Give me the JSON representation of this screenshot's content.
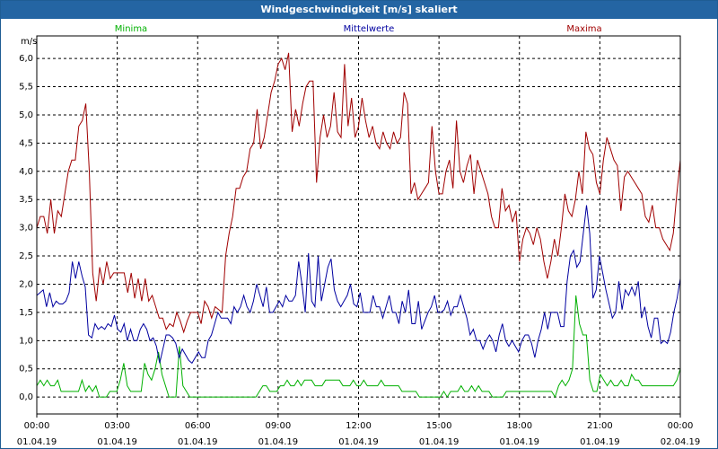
{
  "window": {
    "title": "Windgeschwindigkeit [m/s] skaliert"
  },
  "chart_data": {
    "type": "line",
    "ylabel": "m/s",
    "ylim": [
      -0.3,
      6.4
    ],
    "yticks": [
      "0,0",
      "0,5",
      "1,0",
      "1,5",
      "2,0",
      "2,5",
      "3,0",
      "3,5",
      "4,0",
      "4,5",
      "5,0",
      "5,5",
      "6,0"
    ],
    "xtick_times": [
      "00:00",
      "03:00",
      "06:00",
      "09:00",
      "12:00",
      "15:00",
      "18:00",
      "21:00",
      "00:00"
    ],
    "xtick_dates": [
      "01.04.19",
      "01.04.19",
      "01.04.19",
      "01.04.19",
      "01.04.19",
      "01.04.19",
      "01.04.19",
      "01.04.19",
      "02.04.19"
    ],
    "colors": {
      "Minima": "#00b000",
      "Mittelwerte": "#0000a0",
      "Maxima": "#a00000"
    },
    "series": [
      {
        "name": "Minima",
        "values": [
          0.2,
          0.3,
          0.2,
          0.3,
          0.2,
          0.2,
          0.3,
          0.1,
          0.1,
          0.1,
          0.1,
          0.1,
          0.1,
          0.3,
          0.1,
          0.2,
          0.1,
          0.2,
          0.0,
          0.0,
          0.0,
          0.1,
          0.1,
          0.1,
          0.3,
          0.6,
          0.2,
          0.1,
          0.1,
          0.1,
          0.1,
          0.6,
          0.4,
          0.3,
          0.5,
          0.8,
          0.4,
          0.2,
          0.0,
          0.0,
          0.0,
          0.9,
          0.2,
          0.1,
          0.0,
          0.0,
          0.0,
          0.0,
          0.0,
          0.0,
          0.0,
          0.0,
          0.0,
          0.0,
          0.0,
          0.0,
          0.0,
          0.0,
          0.0,
          0.0,
          0.0,
          0.0,
          0.0,
          0.0,
          0.1,
          0.2,
          0.2,
          0.1,
          0.1,
          0.1,
          0.2,
          0.2,
          0.3,
          0.2,
          0.2,
          0.3,
          0.2,
          0.3,
          0.3,
          0.3,
          0.2,
          0.2,
          0.2,
          0.3,
          0.3,
          0.3,
          0.3,
          0.3,
          0.2,
          0.2,
          0.2,
          0.3,
          0.2,
          0.2,
          0.3,
          0.2,
          0.2,
          0.2,
          0.2,
          0.3,
          0.2,
          0.2,
          0.2,
          0.2,
          0.2,
          0.1,
          0.1,
          0.1,
          0.1,
          0.1,
          0.0,
          0.0,
          0.0,
          0.0,
          0.0,
          0.0,
          0.0,
          0.1,
          0.0,
          0.1,
          0.1,
          0.1,
          0.2,
          0.1,
          0.1,
          0.2,
          0.1,
          0.2,
          0.1,
          0.1,
          0.1,
          0.0,
          0.0,
          0.0,
          0.0,
          0.1,
          0.1,
          0.1,
          0.1,
          0.1,
          0.1,
          0.1,
          0.1,
          0.1,
          0.1,
          0.1,
          0.1,
          0.1,
          0.1,
          0.0,
          0.2,
          0.3,
          0.2,
          0.3,
          0.5,
          1.8,
          1.3,
          1.1,
          1.1,
          0.3,
          0.1,
          0.1,
          0.4,
          0.3,
          0.2,
          0.3,
          0.2,
          0.2,
          0.3,
          0.2,
          0.2,
          0.4,
          0.3,
          0.3,
          0.2,
          0.2,
          0.2,
          0.2,
          0.2,
          0.2,
          0.2,
          0.2,
          0.2,
          0.2,
          0.3,
          0.5
        ]
      },
      {
        "name": "Mittelwerte",
        "values": [
          1.8,
          1.85,
          1.9,
          1.6,
          1.85,
          1.6,
          1.7,
          1.65,
          1.65,
          1.7,
          1.85,
          2.4,
          2.1,
          2.4,
          2.15,
          1.95,
          1.1,
          1.05,
          1.3,
          1.2,
          1.25,
          1.2,
          1.3,
          1.25,
          1.45,
          1.2,
          1.15,
          1.3,
          1.0,
          1.2,
          1.0,
          1.0,
          1.2,
          1.3,
          1.2,
          1.0,
          1.05,
          0.9,
          0.6,
          0.85,
          1.1,
          1.1,
          1.05,
          0.95,
          0.7,
          0.85,
          0.75,
          0.65,
          0.6,
          0.7,
          0.8,
          0.7,
          0.7,
          1.0,
          1.1,
          1.3,
          1.5,
          1.4,
          1.4,
          1.4,
          1.3,
          1.6,
          1.5,
          1.6,
          1.8,
          1.6,
          1.5,
          1.7,
          2.0,
          1.8,
          1.6,
          1.95,
          1.5,
          1.5,
          1.6,
          1.7,
          1.6,
          1.8,
          1.7,
          1.7,
          1.8,
          2.4,
          2.0,
          1.5,
          2.55,
          1.7,
          1.6,
          2.5,
          1.7,
          2.0,
          2.3,
          2.45,
          1.9,
          1.7,
          1.6,
          1.7,
          1.8,
          2.0,
          1.65,
          1.6,
          1.85,
          1.5,
          1.5,
          1.5,
          1.8,
          1.6,
          1.6,
          1.4,
          1.6,
          1.8,
          1.5,
          1.5,
          1.3,
          1.7,
          1.5,
          1.9,
          1.3,
          1.3,
          1.7,
          1.2,
          1.35,
          1.5,
          1.6,
          1.8,
          1.5,
          1.5,
          1.55,
          1.7,
          1.45,
          1.6,
          1.6,
          1.8,
          1.6,
          1.4,
          1.1,
          1.2,
          1.0,
          1.0,
          0.85,
          1.0,
          1.1,
          1.0,
          0.8,
          1.1,
          1.3,
          1.0,
          0.9,
          1.0,
          0.9,
          0.8,
          1.0,
          1.1,
          1.1,
          0.95,
          0.7,
          1.0,
          1.2,
          1.5,
          1.2,
          1.5,
          1.5,
          1.5,
          1.25,
          1.25,
          2.05,
          2.5,
          2.6,
          2.3,
          2.4,
          2.9,
          3.4,
          2.9,
          1.75,
          1.9,
          2.5,
          2.2,
          1.9,
          1.65,
          1.4,
          1.5,
          2.05,
          1.55,
          1.9,
          1.8,
          1.95,
          1.8,
          2.05,
          1.4,
          1.6,
          1.25,
          1.05,
          1.4,
          1.4,
          0.95,
          1.0,
          0.95,
          1.15,
          1.5,
          1.75,
          2.1
        ]
      },
      {
        "name": "Maxima",
        "values": [
          3.0,
          3.2,
          3.2,
          2.9,
          3.5,
          2.9,
          3.3,
          3.2,
          3.6,
          4.0,
          4.2,
          4.2,
          4.8,
          4.9,
          5.2,
          4.0,
          2.2,
          1.7,
          2.3,
          2.0,
          2.4,
          2.1,
          2.2,
          2.2,
          2.2,
          2.2,
          1.85,
          2.2,
          1.75,
          2.1,
          1.7,
          2.1,
          1.7,
          1.8,
          1.6,
          1.4,
          1.4,
          1.2,
          1.3,
          1.25,
          1.5,
          1.35,
          1.15,
          1.35,
          1.5,
          1.5,
          1.5,
          1.3,
          1.7,
          1.6,
          1.4,
          1.6,
          1.55,
          1.5,
          2.5,
          2.9,
          3.2,
          3.7,
          3.7,
          3.9,
          4.0,
          4.4,
          4.5,
          5.1,
          4.4,
          4.6,
          5.0,
          5.4,
          5.6,
          5.9,
          6.0,
          5.8,
          6.1,
          4.7,
          5.1,
          4.8,
          5.2,
          5.5,
          5.6,
          5.6,
          3.8,
          4.6,
          5.0,
          4.6,
          4.8,
          5.4,
          4.7,
          4.6,
          5.9,
          4.8,
          5.3,
          4.6,
          4.8,
          5.3,
          4.9,
          4.6,
          4.8,
          4.5,
          4.4,
          4.7,
          4.5,
          4.4,
          4.7,
          4.5,
          4.6,
          5.4,
          5.2,
          3.6,
          3.8,
          3.5,
          3.6,
          3.7,
          3.8,
          4.8,
          4.0,
          3.6,
          3.6,
          4.0,
          4.2,
          3.7,
          4.9,
          4.0,
          3.8,
          4.1,
          4.3,
          3.6,
          4.2,
          4.0,
          3.8,
          3.6,
          3.2,
          3.0,
          3.0,
          3.7,
          3.3,
          3.4,
          3.1,
          3.3,
          2.4,
          2.8,
          3.0,
          2.9,
          2.7,
          3.0,
          2.8,
          2.4,
          2.1,
          2.4,
          2.8,
          2.5,
          3.0,
          3.6,
          3.3,
          3.2,
          3.5,
          4.0,
          3.6,
          4.7,
          4.4,
          4.3,
          3.8,
          3.6,
          4.2,
          4.6,
          4.4,
          4.2,
          4.1,
          3.3,
          3.9,
          4.0,
          3.9,
          3.8,
          3.7,
          3.6,
          3.2,
          3.1,
          3.4,
          3.0,
          3.0,
          2.8,
          2.7,
          2.6,
          2.9,
          3.6,
          4.2
        ]
      }
    ]
  }
}
